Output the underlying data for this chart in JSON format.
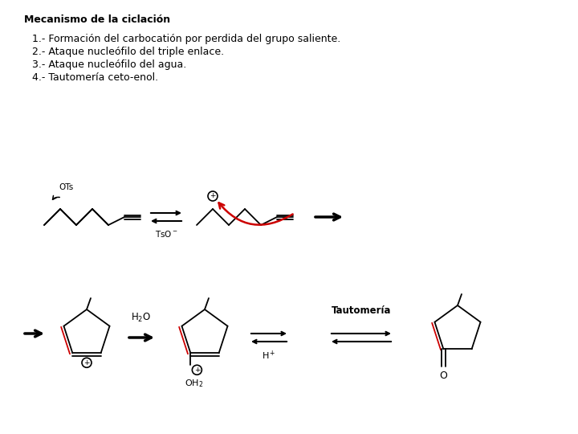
{
  "title": "Mecanismo de la ciclación",
  "bg_color": "#ffffff",
  "text_lines": [
    "1.- Formación del carbocatión por perdida del grupo saliente.",
    "2.- Ataque nucleófilo del triple enlace.",
    "3.- Ataque nucleófilo del agua.",
    "4.- Tautomería ceto-enol."
  ],
  "line_color": "#000000",
  "red_color": "#cc0000",
  "title_fontsize": 9,
  "text_fontsize": 9
}
